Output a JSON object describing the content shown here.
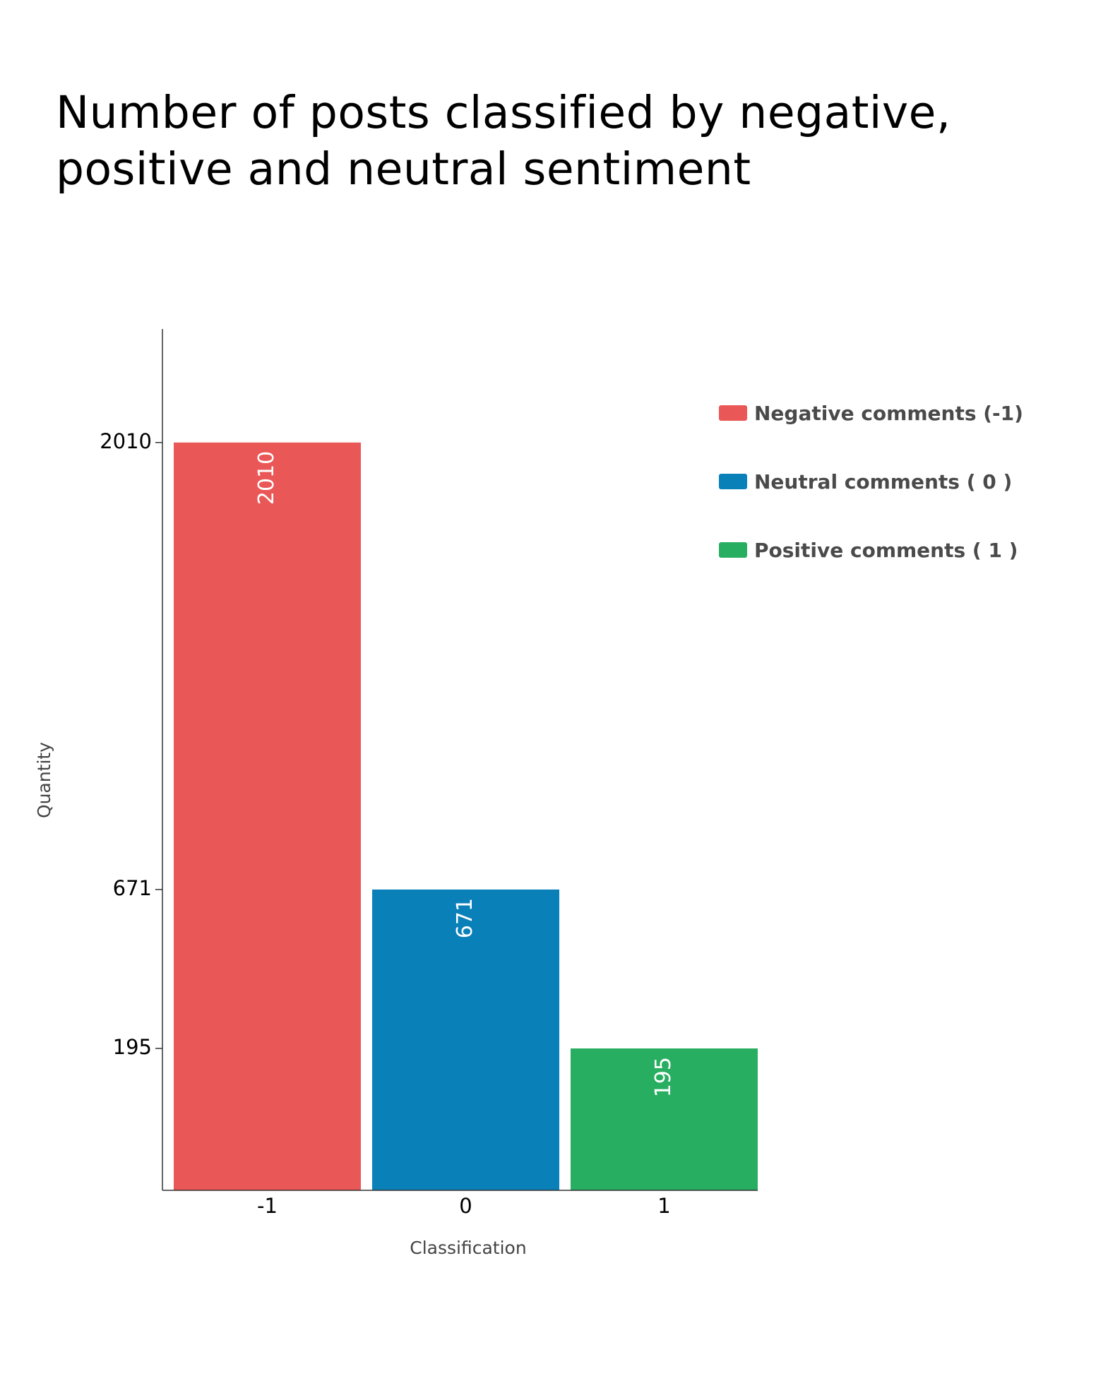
{
  "chart_data": {
    "type": "bar",
    "title": "Number of posts classified by negative, positive and neutral sentiment",
    "xlabel": "Classification",
    "ylabel": "Quantity",
    "categories": [
      "-1",
      "0",
      "1"
    ],
    "values": [
      2010,
      671,
      195
    ],
    "bar_colors": [
      "#EA5757",
      "#0A80B9",
      "#28AE60"
    ],
    "yticks": [
      195,
      671,
      2010
    ],
    "ylim": [
      -230,
      2350
    ],
    "grid": false,
    "legend_position": "top-right",
    "legend": [
      {
        "label": "Negative comments (-1)",
        "color": "#EA5757"
      },
      {
        "label": "Neutral comments ( 0 )",
        "color": "#0A80B9"
      },
      {
        "label": "Positive comments ( 1 )",
        "color": "#28AE60"
      }
    ]
  }
}
